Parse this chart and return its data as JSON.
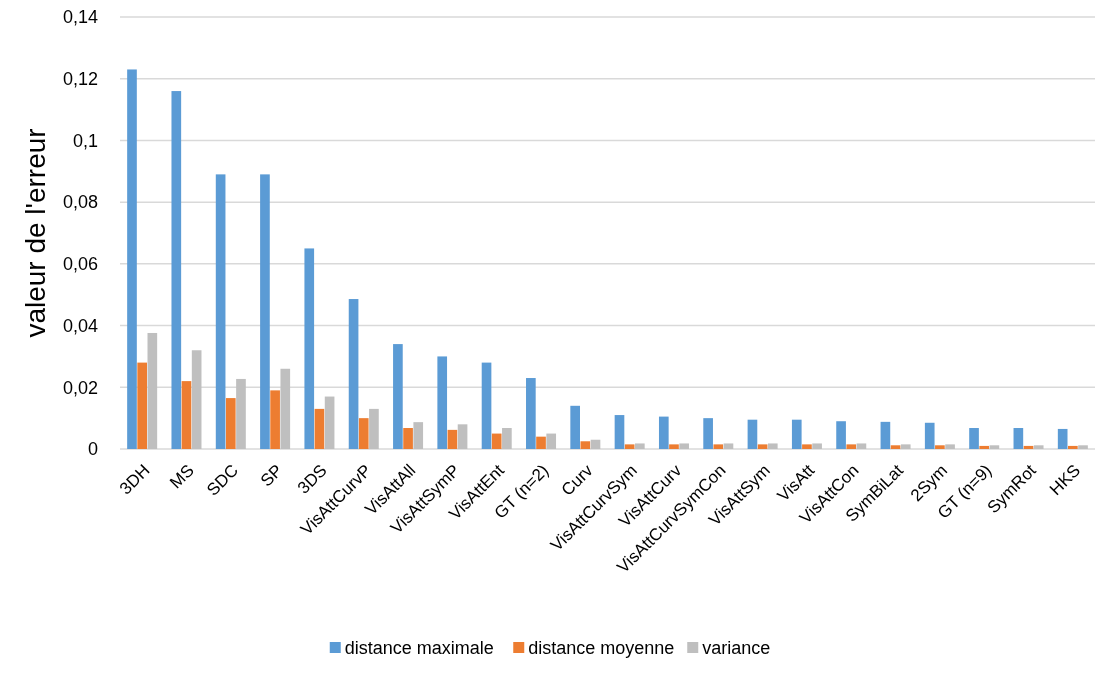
{
  "chart_data": {
    "type": "bar",
    "ylabel": "valeur de l'erreur",
    "categories": [
      "3DH",
      "MS",
      "SDC",
      "SP",
      "3DS",
      "VisAttCurvP",
      "VisAttAll",
      "VisAttSymP",
      "VisAttEnt",
      "GT (n=2)",
      "Curv",
      "VisAttCurvSym",
      "VisAttCurv",
      "VisAttCurvSymCon",
      "VisAttSym",
      "VisAtt",
      "VisAttCon",
      "SymBiLat",
      "2Sym",
      "GT (n=9)",
      "SymRot",
      "HKS"
    ],
    "series": [
      {
        "name": "distance maximale",
        "color": "#5b9bd5",
        "values": [
          0.123,
          0.116,
          0.089,
          0.089,
          0.065,
          0.0486,
          0.034,
          0.03,
          0.028,
          0.023,
          0.014,
          0.011,
          0.0105,
          0.01,
          0.0095,
          0.0095,
          0.009,
          0.0088,
          0.0085,
          0.0068,
          0.0068,
          0.0065
        ]
      },
      {
        "name": "distance moyenne",
        "color": "#ed7d31",
        "values": [
          0.028,
          0.022,
          0.0165,
          0.019,
          0.013,
          0.01,
          0.0068,
          0.0062,
          0.005,
          0.004,
          0.0025,
          0.0015,
          0.0015,
          0.0015,
          0.0015,
          0.0015,
          0.0015,
          0.0012,
          0.0012,
          0.001,
          0.001,
          0.001
        ]
      },
      {
        "name": "variance",
        "color": "#bfbfbf",
        "values": [
          0.0376,
          0.032,
          0.0227,
          0.026,
          0.017,
          0.013,
          0.0087,
          0.008,
          0.0068,
          0.005,
          0.003,
          0.0018,
          0.0018,
          0.0018,
          0.0018,
          0.0018,
          0.0018,
          0.0015,
          0.0015,
          0.0012,
          0.0012,
          0.0012
        ]
      }
    ],
    "ylim": [
      0,
      0.14
    ],
    "yticks": [
      0,
      {
        "value": 0.02,
        "label": "0,02"
      },
      {
        "value": 0.04,
        "label": "0,04"
      },
      {
        "value": 0.06,
        "label": "0,06"
      },
      {
        "value": 0.08,
        "label": "0,08"
      },
      {
        "value": 0.1,
        "label": "0,1"
      },
      {
        "value": 0.12,
        "label": "0,12"
      },
      {
        "value": 0.14,
        "label": "0,14"
      }
    ],
    "grid": "y",
    "legend": "bottom"
  }
}
